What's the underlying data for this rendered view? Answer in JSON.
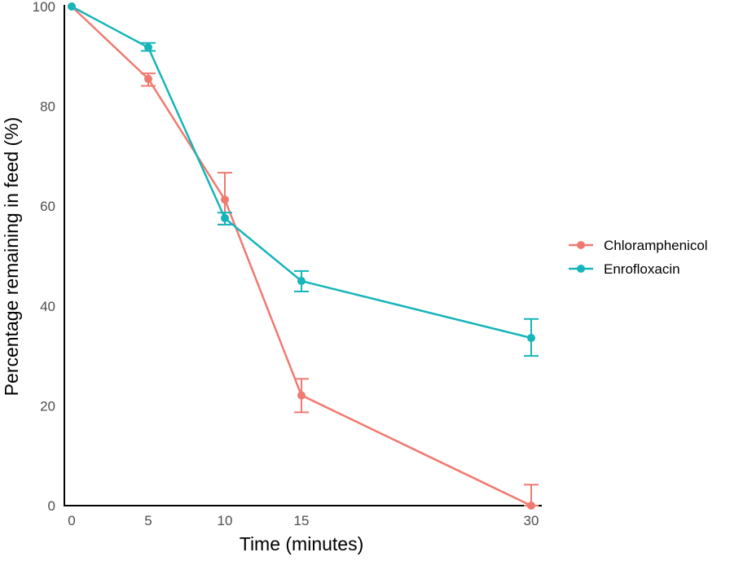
{
  "chart_data": {
    "type": "line",
    "title": "",
    "xlabel": "Time (minutes)",
    "ylabel": "Percentage remaining in feed (%)",
    "xlim": [
      0,
      30
    ],
    "ylim": [
      0,
      100
    ],
    "x_ticks": [
      0,
      5,
      10,
      15,
      30
    ],
    "y_ticks": [
      0,
      20,
      40,
      60,
      80,
      100
    ],
    "grid": false,
    "legend_position": "right",
    "series": [
      {
        "name": "Chloramphenicol",
        "color": "#F07A70",
        "x": [
          0,
          5,
          10,
          15,
          30
        ],
        "y": [
          100,
          85.5,
          61.3,
          22.1,
          0
        ],
        "error_upper": [
          100,
          86.6,
          66.7,
          25.4,
          4.2
        ],
        "error_lower": [
          100,
          84.1,
          56.3,
          18.7,
          0
        ]
      },
      {
        "name": "Enrofloxacin",
        "color": "#15B5BA",
        "x": [
          0,
          5,
          10,
          15,
          30
        ],
        "y": [
          100,
          91.8,
          57.6,
          45.0,
          33.6
        ],
        "error_upper": [
          100,
          92.7,
          58.7,
          47.0,
          37.4
        ],
        "error_lower": [
          100,
          91.1,
          56.3,
          42.9,
          30.0
        ]
      }
    ]
  }
}
